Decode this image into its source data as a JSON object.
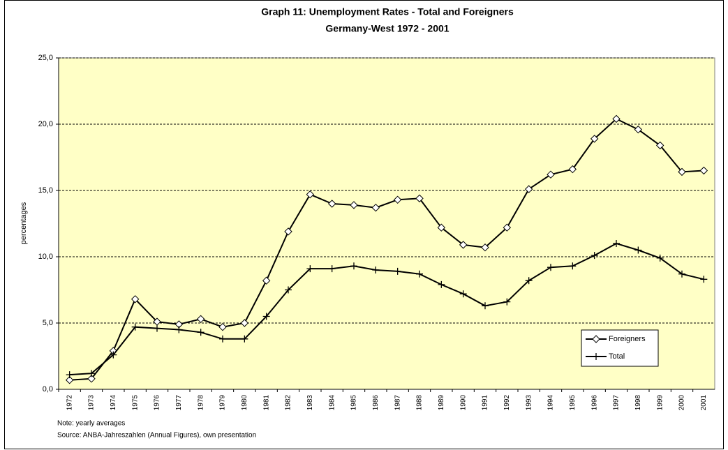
{
  "chart_data": {
    "type": "line",
    "title": "Graph 11: Unemployment Rates - Total and Foreigners",
    "subtitle": "Germany-West 1972 - 2001",
    "y_label": "percentages",
    "notes": [
      "Note: yearly averages",
      "Source: ANBA-Jahreszahlen (Annual Figures), own presentation"
    ],
    "categories": [
      "1972",
      "1973",
      "1974",
      "1975",
      "1976",
      "1977",
      "1978",
      "1979",
      "1980",
      "1981",
      "1982",
      "1983",
      "1984",
      "1985",
      "1986",
      "1987",
      "1988",
      "1989",
      "1990",
      "1991",
      "1992",
      "1993",
      "1994",
      "1995",
      "1996",
      "1997",
      "1998",
      "1999",
      "2000",
      "2001"
    ],
    "series": [
      {
        "name": "Foreigners",
        "color": "#000000",
        "marker": "diamond",
        "values": [
          0.7,
          0.8,
          2.9,
          6.8,
          5.1,
          4.9,
          5.3,
          4.7,
          5.0,
          8.2,
          11.9,
          14.7,
          14.0,
          13.9,
          13.7,
          14.3,
          14.4,
          12.2,
          10.9,
          10.7,
          12.2,
          15.1,
          16.2,
          16.6,
          18.9,
          20.4,
          19.6,
          18.4,
          16.4,
          16.5
        ]
      },
      {
        "name": "Total",
        "color": "#000000",
        "marker": "plus",
        "values": [
          1.1,
          1.2,
          2.6,
          4.7,
          4.6,
          4.5,
          4.3,
          3.8,
          3.8,
          5.5,
          7.5,
          9.1,
          9.1,
          9.3,
          9.0,
          8.9,
          8.7,
          7.9,
          7.2,
          6.3,
          6.6,
          8.2,
          9.2,
          9.3,
          10.1,
          11.0,
          10.5,
          9.9,
          8.7,
          8.3
        ]
      }
    ],
    "ylim": [
      0,
      25
    ],
    "yticks": [
      {
        "value": 0,
        "label": "0,0"
      },
      {
        "value": 5,
        "label": "5,0"
      },
      {
        "value": 10,
        "label": "10,0"
      },
      {
        "value": 15,
        "label": "15,0"
      },
      {
        "value": 20,
        "label": "20,0"
      },
      {
        "value": 25,
        "label": "25,0"
      }
    ],
    "grid": true,
    "plot_background": "#ffffc6",
    "legend_position": "lower right"
  }
}
